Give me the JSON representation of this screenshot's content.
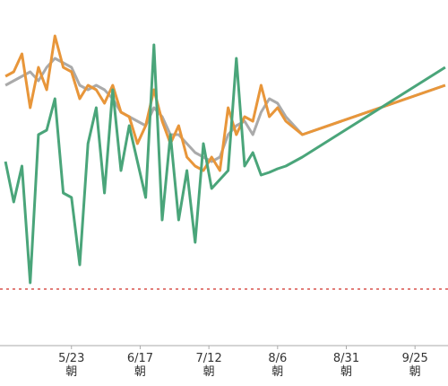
{
  "chart_data": {
    "type": "line",
    "x": [
      "4/29",
      "5/2",
      "5/5",
      "5/8",
      "5/11",
      "5/14",
      "5/17",
      "5/20",
      "5/23",
      "5/26",
      "5/29",
      "6/1",
      "6/4",
      "6/7",
      "6/10",
      "6/13",
      "6/16",
      "6/19",
      "6/22",
      "6/25",
      "6/28",
      "7/1",
      "7/4",
      "7/7",
      "7/10",
      "7/13",
      "7/16",
      "7/19",
      "7/22",
      "7/25",
      "7/28",
      "7/31",
      "8/3",
      "8/6",
      "8/9",
      "8/15",
      "10/6"
    ],
    "series": [
      {
        "color": "#aaaaaa",
        "values": [
          290,
          295,
          300,
          305,
          295,
          310,
          320,
          315,
          310,
          290,
          285,
          290,
          285,
          275,
          260,
          255,
          250,
          245,
          265,
          255,
          235,
          235,
          225,
          215,
          210,
          205,
          210,
          235,
          245,
          250,
          235,
          260,
          275,
          270,
          255,
          235,
          290
        ]
      },
      {
        "color": "#e8963a",
        "values": [
          300,
          305,
          325,
          265,
          310,
          285,
          345,
          310,
          305,
          275,
          290,
          285,
          270,
          290,
          260,
          255,
          225,
          245,
          285,
          250,
          225,
          245,
          210,
          200,
          195,
          210,
          195,
          265,
          235,
          255,
          250,
          290,
          255,
          265,
          250,
          235,
          290
        ]
      },
      {
        "color": "#4aa57a",
        "values": [
          205,
          160,
          200,
          70,
          235,
          240,
          275,
          170,
          165,
          90,
          225,
          265,
          170,
          285,
          195,
          245,
          205,
          165,
          335,
          140,
          235,
          140,
          195,
          115,
          225,
          175,
          185,
          195,
          320,
          200,
          215,
          190,
          193,
          197,
          200,
          210,
          310
        ]
      }
    ],
    "xlim": [
      "4/27",
      "10/7"
    ],
    "xticks": [
      {
        "value": "5/23",
        "label": "5/23\n朝"
      },
      {
        "value": "6/17",
        "label": "6/17\n朝"
      },
      {
        "value": "7/12",
        "label": "7/12\n朝"
      },
      {
        "value": "8/6",
        "label": "8/6\n朝"
      },
      {
        "value": "8/31",
        "label": "8/31\n朝"
      },
      {
        "value": "9/25",
        "label": "9/25\n朝"
      }
    ],
    "ylim": [
      0,
      350
    ],
    "reference_line": {
      "value": 63,
      "color": "#d9534f",
      "style": "dashed"
    }
  }
}
